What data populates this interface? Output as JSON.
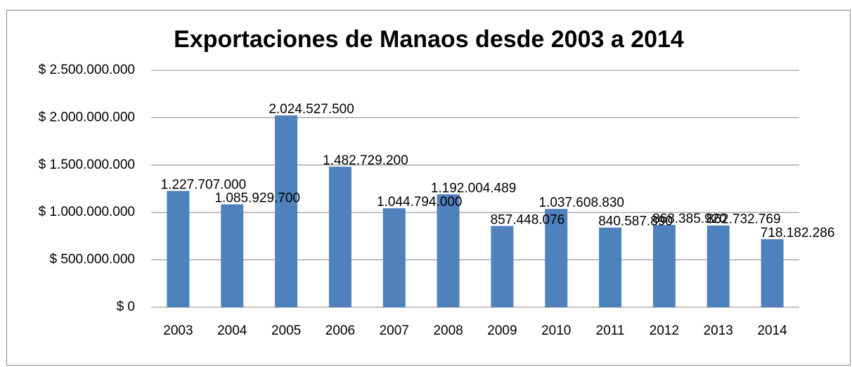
{
  "chart_data": {
    "type": "bar",
    "title": "Exportaciones de Manaos desde 2003 a 2014",
    "categories": [
      "2003",
      "2004",
      "2005",
      "2006",
      "2007",
      "2008",
      "2009",
      "2010",
      "2011",
      "2012",
      "2013",
      "2014"
    ],
    "values": [
      1227707000,
      1085929700,
      2024527500,
      1482729200,
      1044794000,
      1192004489,
      857448076,
      1037608830,
      840587890,
      868385920,
      862732769,
      718182286
    ],
    "value_labels": [
      "1.227.707.000",
      "1.085.929.700",
      "2.024.527.500",
      "1.482.729.200",
      "1.044.794.000",
      "1.192.004.489",
      "857.448.076",
      "1.037.608.830",
      "840.587.890",
      "868.385.920",
      "862.732.769",
      "718.182.286"
    ],
    "color": "#4f81bd",
    "ylim": [
      0,
      2500000000
    ],
    "yticks": [
      {
        "value": 0,
        "label": "$ 0"
      },
      {
        "value": 500000000,
        "label": "$ 500.000.000"
      },
      {
        "value": 1000000000,
        "label": "$ 1.000.000.000"
      },
      {
        "value": 1500000000,
        "label": "$ 1.500.000.000"
      },
      {
        "value": 2000000000,
        "label": "$ 2.000.000.000"
      },
      {
        "value": 2500000000,
        "label": "$ 2.500.000.000"
      }
    ],
    "grid": true
  }
}
